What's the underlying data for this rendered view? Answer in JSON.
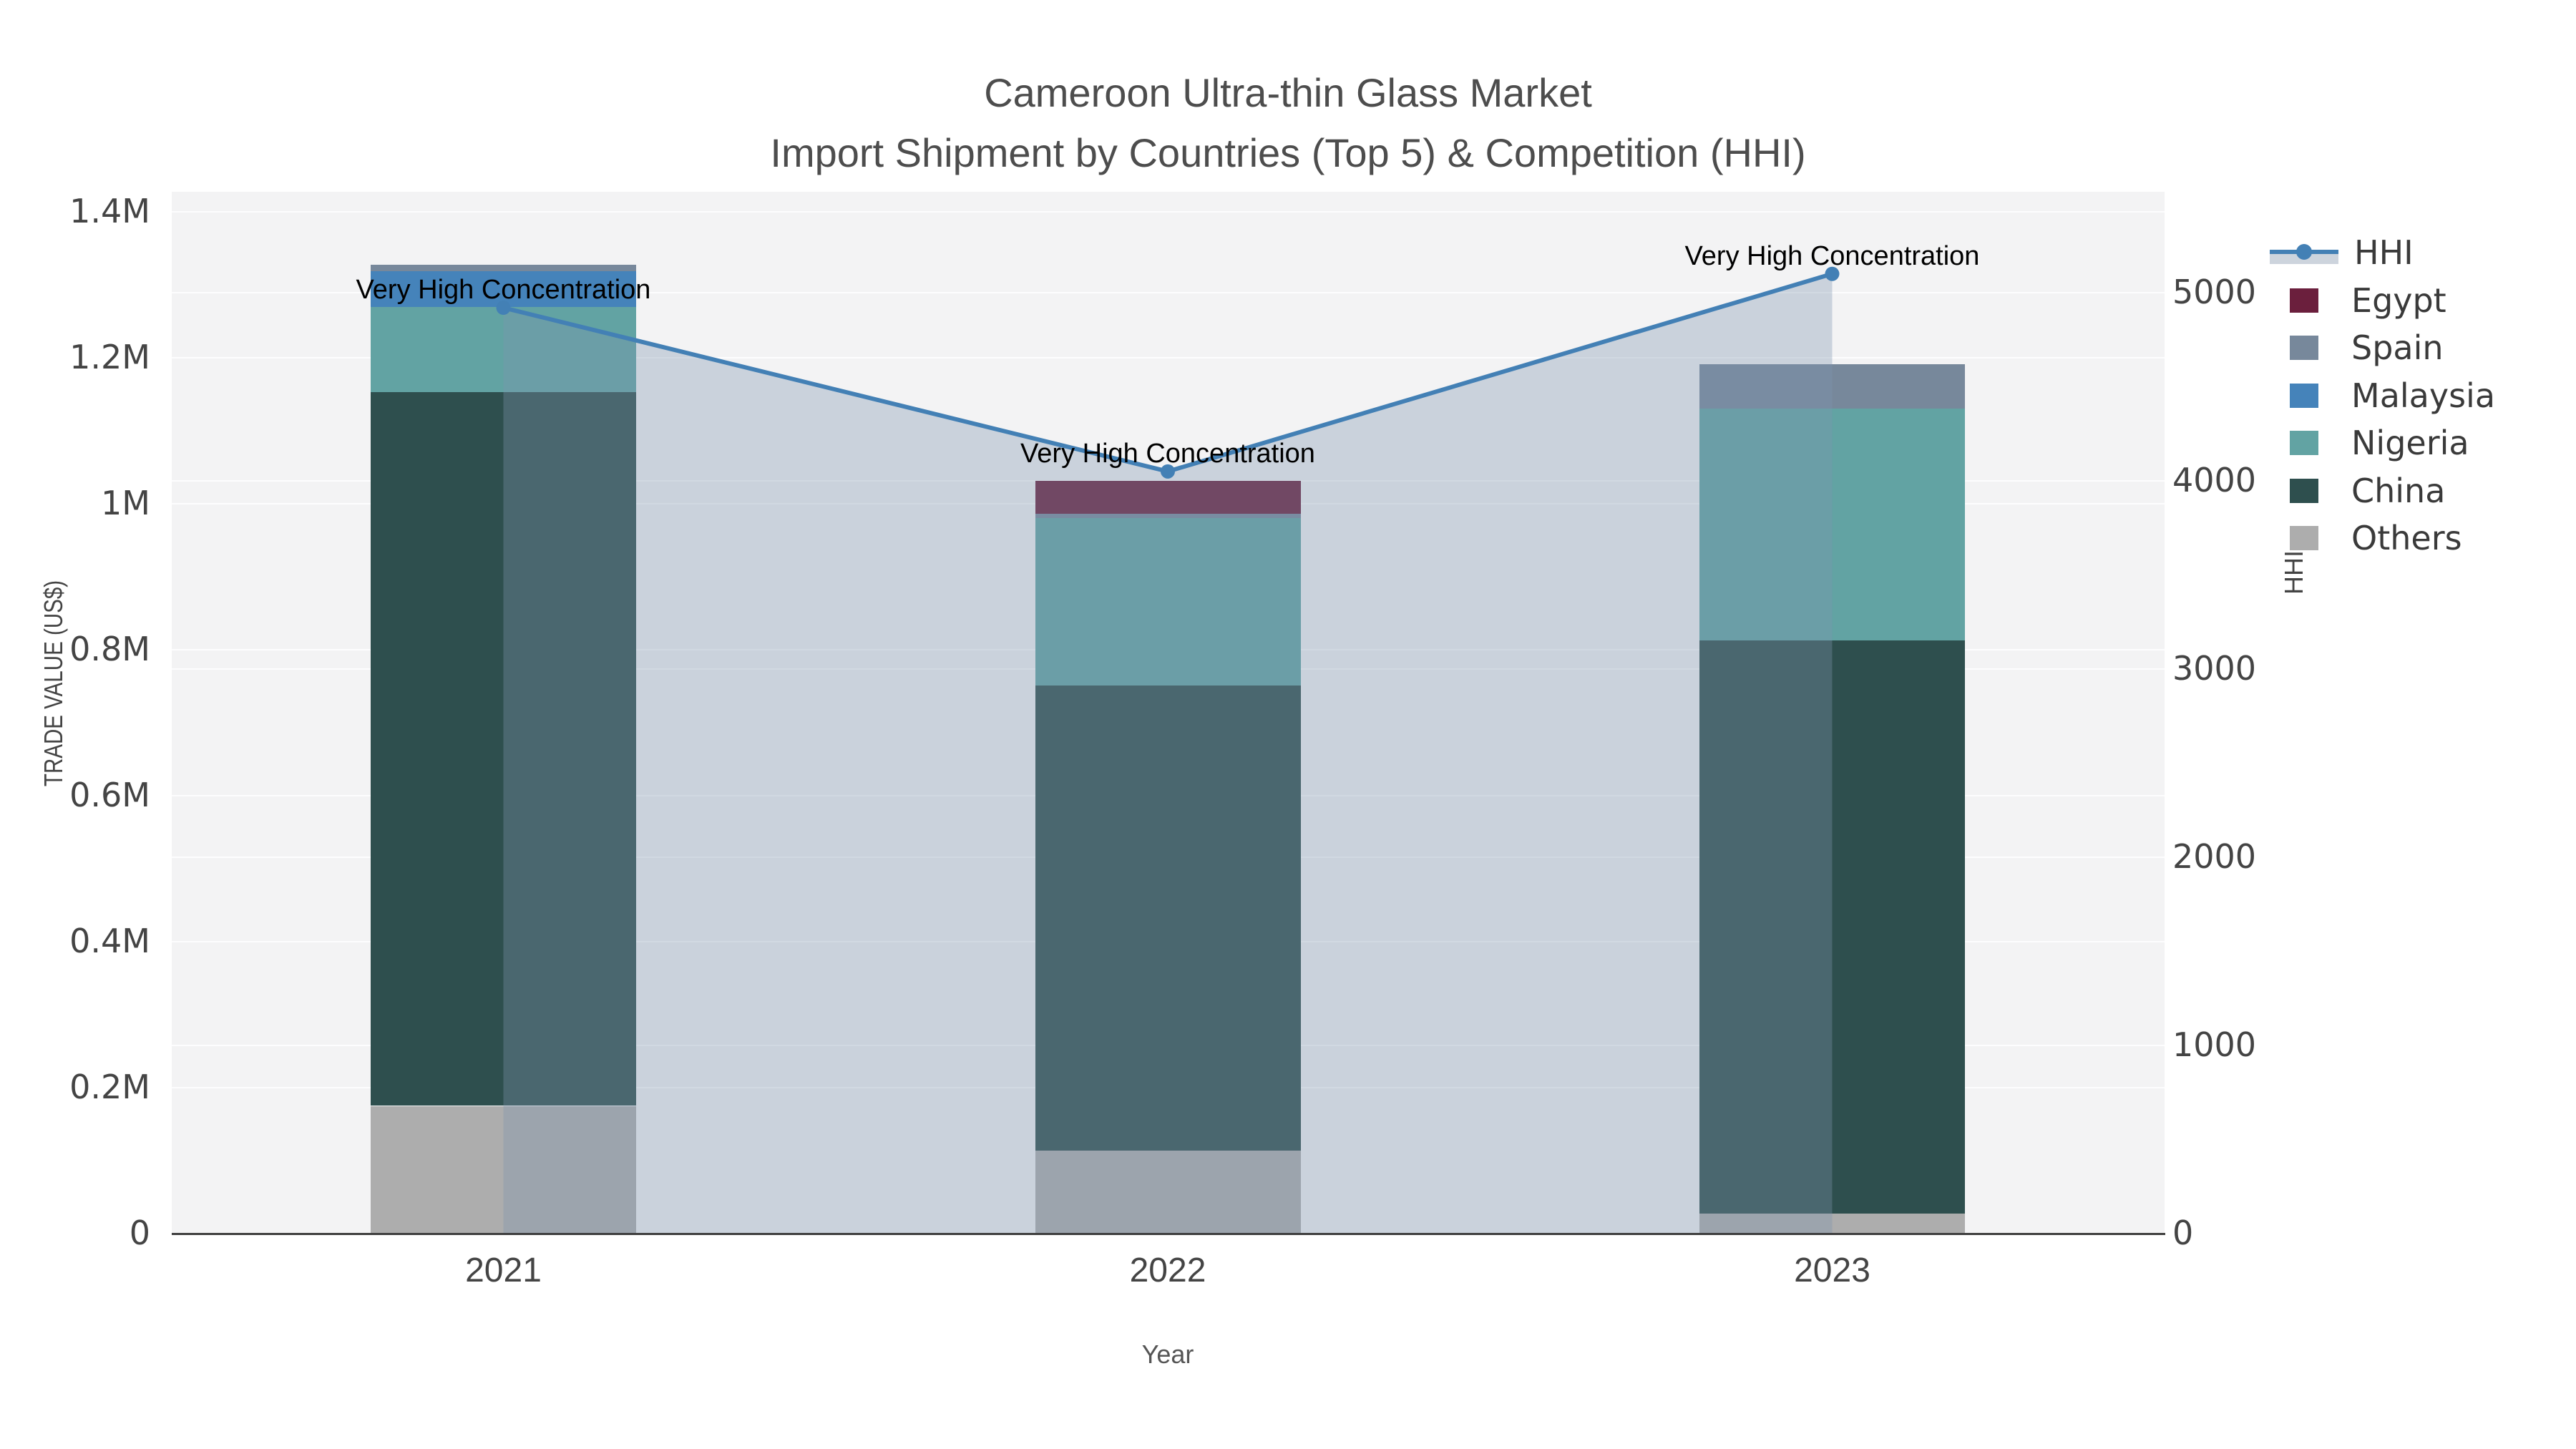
{
  "title": {
    "line1": "Cameroon Ultra-thin Glass Market",
    "line2": "Import Shipment by Countries (Top 5) & Competition (HHI)"
  },
  "axes": {
    "left": {
      "title": "TRADE VALUE (US$)",
      "ticks": [
        "0",
        "0.2M",
        "0.4M",
        "0.6M",
        "0.8M",
        "1M",
        "1.2M",
        "1.4M"
      ]
    },
    "right": {
      "title": "HHI",
      "ticks": [
        "0",
        "1000",
        "2000",
        "3000",
        "4000",
        "5000"
      ]
    },
    "x": {
      "title": "Year",
      "ticks": [
        "2021",
        "2022",
        "2023"
      ]
    }
  },
  "legend": {
    "position": "right",
    "items": [
      {
        "id": "hhi",
        "label": "HHI",
        "type": "line"
      },
      {
        "id": "egypt",
        "label": "Egypt",
        "type": "swatch",
        "color": "#6b1f3d"
      },
      {
        "id": "spain",
        "label": "Spain",
        "type": "swatch",
        "color": "#77889b"
      },
      {
        "id": "malaysia",
        "label": "Malaysia",
        "type": "swatch",
        "color": "#4583ba"
      },
      {
        "id": "nigeria",
        "label": "Nigeria",
        "type": "swatch",
        "color": "#62a3a3"
      },
      {
        "id": "china",
        "label": "China",
        "type": "swatch",
        "color": "#2e4f4e"
      },
      {
        "id": "others",
        "label": "Others",
        "type": "swatch",
        "color": "#adadad"
      }
    ]
  },
  "colors": {
    "hhi_line": "#4380b5",
    "area_fill": "rgba(125,150,175,0.35)",
    "legend_area_band": "#cdd4dd",
    "plot_bg": "#f3f3f4",
    "axis_line": "#3f3f3f",
    "tick_text": "#444444",
    "title_text": "#4d4d4d"
  },
  "chart_data": {
    "type": [
      "bar",
      "line"
    ],
    "title": "Cameroon Ultra-thin Glass Market — Import Shipment by Countries (Top 5) & Competition (HHI)",
    "categories": [
      "2021",
      "2022",
      "2023"
    ],
    "bar_stack_order_bottom_to_top": [
      "Others",
      "China",
      "Nigeria",
      "Malaysia",
      "Spain",
      "Egypt"
    ],
    "bar_series": [
      {
        "name": "Others",
        "color": "#adadad",
        "values": [
          175000,
          114000,
          27000
        ]
      },
      {
        "name": "China",
        "color": "#2e4f4e",
        "values": [
          978000,
          637000,
          786000
        ]
      },
      {
        "name": "Nigeria",
        "color": "#62a3a3",
        "values": [
          117000,
          229000,
          317000
        ]
      },
      {
        "name": "Malaysia",
        "color": "#4583ba",
        "values": [
          49000,
          0,
          0
        ]
      },
      {
        "name": "Spain",
        "color": "#77889b",
        "values": [
          8000,
          6000,
          61000
        ]
      },
      {
        "name": "Egypt",
        "color": "#6b1f3d",
        "values": [
          0,
          45000,
          0
        ]
      }
    ],
    "bar_totals": [
      1327000,
      1031000,
      1191000
    ],
    "line_series": {
      "name": "HHI",
      "color": "#4380b5",
      "area": true,
      "values": [
        4920,
        4050,
        5100
      ]
    },
    "annotations": [
      "Very High Concentration",
      "Very High Concentration",
      "Very High Concentration"
    ],
    "xlabel": "Year",
    "ylabel": "TRADE VALUE (US$)",
    "y2label": "HHI",
    "ylim": [
      0,
      1400000
    ],
    "y2lim": [
      0,
      5430
    ],
    "grid": true,
    "legend_position": "right"
  }
}
